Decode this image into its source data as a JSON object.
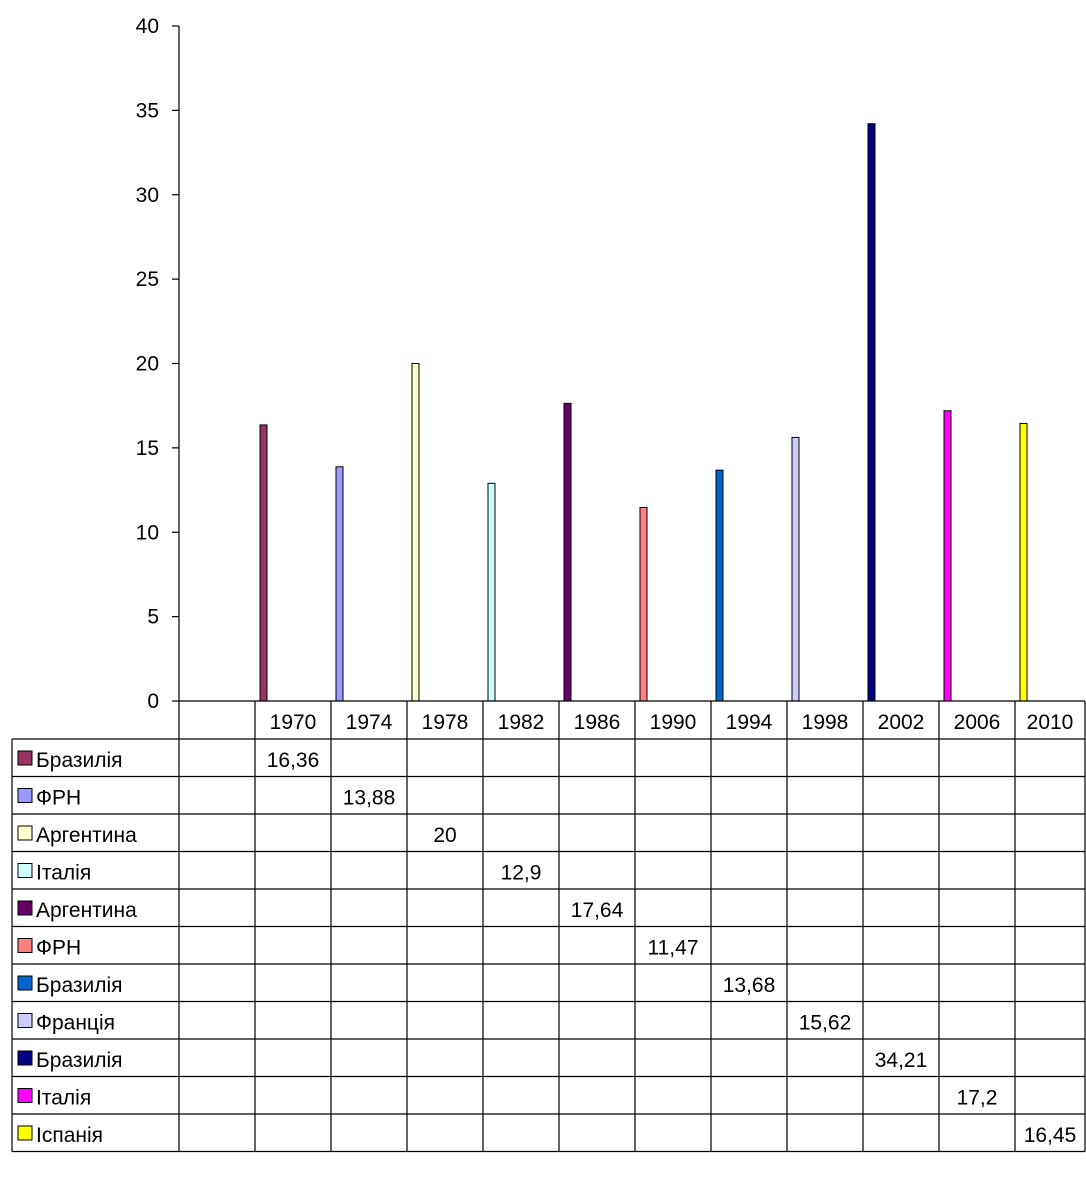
{
  "chart_data": {
    "type": "bar",
    "categories": [
      "1970",
      "1974",
      "1978",
      "1982",
      "1986",
      "1990",
      "1994",
      "1998",
      "2002",
      "2006",
      "2010"
    ],
    "y_ticks": [
      "0",
      "5",
      "10",
      "15",
      "20",
      "25",
      "30",
      "35",
      "40"
    ],
    "ylim": [
      0,
      40
    ],
    "grid": false,
    "legend": "data-table-below",
    "series": [
      {
        "name": "Бразилія",
        "color": "#993366",
        "values": [
          16.36,
          null,
          null,
          null,
          null,
          null,
          null,
          null,
          null,
          null,
          null
        ],
        "labels": [
          "16,36",
          "",
          "",
          "",
          "",
          "",
          "",
          "",
          "",
          "",
          ""
        ]
      },
      {
        "name": "ФРН",
        "color": "#9999FF",
        "values": [
          null,
          13.88,
          null,
          null,
          null,
          null,
          null,
          null,
          null,
          null,
          null
        ],
        "labels": [
          "",
          "13,88",
          "",
          "",
          "",
          "",
          "",
          "",
          "",
          "",
          ""
        ]
      },
      {
        "name": "Аргентина",
        "color": "#FFFFCC",
        "values": [
          null,
          null,
          20,
          null,
          null,
          null,
          null,
          null,
          null,
          null,
          null
        ],
        "labels": [
          "",
          "",
          "20",
          "",
          "",
          "",
          "",
          "",
          "",
          "",
          ""
        ]
      },
      {
        "name": "Італія",
        "color": "#CCFFFF",
        "values": [
          null,
          null,
          null,
          12.9,
          null,
          null,
          null,
          null,
          null,
          null,
          null
        ],
        "labels": [
          "",
          "",
          "",
          "12,9",
          "",
          "",
          "",
          "",
          "",
          "",
          ""
        ]
      },
      {
        "name": "Аргентина",
        "color": "#660066",
        "values": [
          null,
          null,
          null,
          null,
          17.64,
          null,
          null,
          null,
          null,
          null,
          null
        ],
        "labels": [
          "",
          "",
          "",
          "",
          "17,64",
          "",
          "",
          "",
          "",
          "",
          ""
        ]
      },
      {
        "name": "ФРН",
        "color": "#FF8080",
        "values": [
          null,
          null,
          null,
          null,
          null,
          11.47,
          null,
          null,
          null,
          null,
          null
        ],
        "labels": [
          "",
          "",
          "",
          "",
          "",
          "11,47",
          "",
          "",
          "",
          "",
          ""
        ]
      },
      {
        "name": "Бразилія",
        "color": "#0066CC",
        "values": [
          null,
          null,
          null,
          null,
          null,
          null,
          13.68,
          null,
          null,
          null,
          null
        ],
        "labels": [
          "",
          "",
          "",
          "",
          "",
          "",
          "13,68",
          "",
          "",
          "",
          ""
        ]
      },
      {
        "name": "Франція",
        "color": "#CCCCFF",
        "values": [
          null,
          null,
          null,
          null,
          null,
          null,
          null,
          15.62,
          null,
          null,
          null
        ],
        "labels": [
          "",
          "",
          "",
          "",
          "",
          "",
          "",
          "15,62",
          "",
          "",
          ""
        ]
      },
      {
        "name": "Бразилія",
        "color": "#000080",
        "values": [
          null,
          null,
          null,
          null,
          null,
          null,
          null,
          null,
          34.21,
          null,
          null
        ],
        "labels": [
          "",
          "",
          "",
          "",
          "",
          "",
          "",
          "",
          "34,21",
          "",
          ""
        ]
      },
      {
        "name": "Італія",
        "color": "#FF00FF",
        "values": [
          null,
          null,
          null,
          null,
          null,
          null,
          null,
          null,
          null,
          17.2,
          null
        ],
        "labels": [
          "",
          "",
          "",
          "",
          "",
          "",
          "",
          "",
          "",
          "17,2",
          ""
        ]
      },
      {
        "name": "Іспанія",
        "color": "#FFFF00",
        "values": [
          null,
          null,
          null,
          null,
          null,
          null,
          null,
          null,
          null,
          null,
          16.45
        ],
        "labels": [
          "",
          "",
          "",
          "",
          "",
          "",
          "",
          "",
          "",
          "",
          "16,45"
        ]
      }
    ]
  }
}
